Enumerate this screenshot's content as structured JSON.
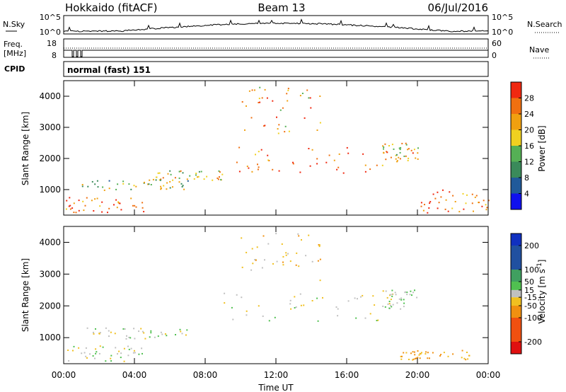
{
  "header": {
    "station": "Hokkaido (fitACF)",
    "beam": "Beam 13",
    "date": "06/Jul/2016"
  },
  "noise_panel": {
    "left_label": "N.Sky",
    "right_label": "N.Search",
    "left_ticks": [
      "10^5",
      "10^0"
    ],
    "right_ticks": [
      "10^5",
      "10^0"
    ]
  },
  "freq_panel": {
    "left_label_line1": "Freq.",
    "left_label_line2": "[MHz]",
    "left_ticks": [
      "18",
      "8"
    ],
    "right_label": "Nave",
    "right_ticks": [
      "60",
      "0"
    ]
  },
  "cpid": {
    "label": "CPID",
    "text": "normal (fast) 151"
  },
  "colors": {
    "power_bands": [
      "#1010ee",
      "#205a9a",
      "#3a8a5a",
      "#55b055",
      "#f0d020",
      "#f0a010",
      "#f07010",
      "#f02810"
    ],
    "velocity_bands": [
      "#e01010",
      "#f05010",
      "#f09010",
      "#f0c020",
      "#c0c0c0",
      "#50c050",
      "#40a060",
      "#2050a0",
      "#1030c0"
    ]
  },
  "chart_data": [
    {
      "type": "heatmap",
      "title": "",
      "xlabel": "",
      "ylabel": "Slant Range [km]",
      "xlim": [
        "00:00",
        "24:00"
      ],
      "ylim": [
        180,
        4500
      ],
      "yticks": [
        1000,
        2000,
        3000,
        4000
      ],
      "x_tick_labels": [
        "00:00",
        "04:00",
        "08:00",
        "12:00",
        "16:00",
        "20:00",
        "00:00"
      ],
      "colorbar": {
        "label": "Power [dB]",
        "range": [
          0,
          32
        ],
        "ticks": [
          "4",
          "8",
          "12",
          "16",
          "20",
          "24",
          "28"
        ],
        "tick_values": [
          4,
          8,
          12,
          16,
          20,
          24,
          28
        ]
      },
      "echo_regions": [
        {
          "time_range": [
            "00:00",
            "04:30"
          ],
          "range_km": [
            250,
            750
          ],
          "power_db": 26
        },
        {
          "time_range": [
            "01:00",
            "07:00"
          ],
          "range_km": [
            950,
            1300
          ],
          "power_db": 16
        },
        {
          "time_range": [
            "05:00",
            "09:00"
          ],
          "range_km": [
            1300,
            1600
          ],
          "power_db": 18
        },
        {
          "time_range": [
            "09:00",
            "18:00"
          ],
          "range_km": [
            1500,
            2400
          ],
          "power_db": 26
        },
        {
          "time_range": [
            "10:00",
            "14:30"
          ],
          "range_km": [
            2800,
            4300
          ],
          "power_db": 22
        },
        {
          "time_range": [
            "18:00",
            "20:00"
          ],
          "range_km": [
            1900,
            2500
          ],
          "power_db": 20
        },
        {
          "time_range": [
            "20:00",
            "24:00"
          ],
          "range_km": [
            250,
            1000
          ],
          "power_db": 26
        }
      ]
    },
    {
      "type": "heatmap",
      "title": "",
      "xlabel": "Time UT",
      "ylabel": "Slant Range [km]",
      "xlim": [
        "00:00",
        "24:00"
      ],
      "ylim": [
        180,
        4500
      ],
      "yticks": [
        1000,
        2000,
        3000,
        4000
      ],
      "x_tick_labels": [
        "00:00",
        "04:00",
        "08:00",
        "12:00",
        "16:00",
        "20:00",
        "00:00"
      ],
      "colorbar": {
        "label": "Velocity [m s^-1]",
        "range": [
          -250,
          250
        ],
        "ticks": [
          "-200",
          "-100",
          "-50",
          "-15",
          "15",
          "50",
          "100",
          "200"
        ],
        "tick_values": [
          -200,
          -100,
          -50,
          -15,
          15,
          50,
          100,
          200
        ]
      },
      "echo_regions": [
        {
          "time_range": [
            "00:00",
            "04:30"
          ],
          "range_km": [
            250,
            750
          ],
          "velocity_ms": 0
        },
        {
          "time_range": [
            "01:00",
            "07:00"
          ],
          "range_km": [
            950,
            1300
          ],
          "velocity_ms": 0
        },
        {
          "time_range": [
            "09:00",
            "18:00"
          ],
          "range_km": [
            1500,
            2400
          ],
          "velocity_ms": -5
        },
        {
          "time_range": [
            "10:00",
            "14:30"
          ],
          "range_km": [
            2800,
            4300
          ],
          "velocity_ms": -30
        },
        {
          "time_range": [
            "18:00",
            "20:00"
          ],
          "range_km": [
            1900,
            2500
          ],
          "velocity_ms": 5
        },
        {
          "time_range": [
            "19:00",
            "23:00"
          ],
          "range_km": [
            300,
            600
          ],
          "velocity_ms": -60
        }
      ]
    }
  ]
}
